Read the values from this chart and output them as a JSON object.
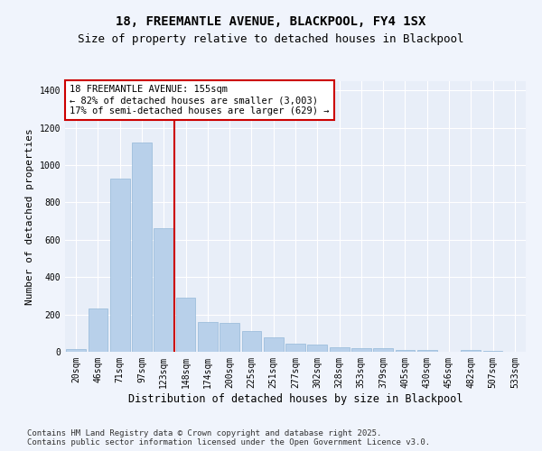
{
  "title1": "18, FREEMANTLE AVENUE, BLACKPOOL, FY4 1SX",
  "title2": "Size of property relative to detached houses in Blackpool",
  "xlabel": "Distribution of detached houses by size in Blackpool",
  "ylabel": "Number of detached properties",
  "categories": [
    "20sqm",
    "46sqm",
    "71sqm",
    "97sqm",
    "123sqm",
    "148sqm",
    "174sqm",
    "200sqm",
    "225sqm",
    "251sqm",
    "277sqm",
    "302sqm",
    "328sqm",
    "353sqm",
    "379sqm",
    "405sqm",
    "430sqm",
    "456sqm",
    "482sqm",
    "507sqm",
    "533sqm"
  ],
  "values": [
    15,
    230,
    930,
    1120,
    660,
    290,
    160,
    155,
    110,
    75,
    45,
    38,
    22,
    18,
    18,
    12,
    8,
    0,
    8,
    4,
    0
  ],
  "bar_color": "#b8d0ea",
  "bar_edge_color": "#94b8d8",
  "vline_color": "#cc0000",
  "vline_x": 4.5,
  "annotation_title": "18 FREEMANTLE AVENUE: 155sqm",
  "annotation_line1": "← 82% of detached houses are smaller (3,003)",
  "annotation_line2": "17% of semi-detached houses are larger (629) →",
  "annotation_box_color": "#cc0000",
  "ylim": [
    0,
    1450
  ],
  "yticks": [
    0,
    200,
    400,
    600,
    800,
    1000,
    1200,
    1400
  ],
  "bg_color": "#e8eef8",
  "grid_color": "#ffffff",
  "fig_bg_color": "#f0f4fc",
  "footer1": "Contains HM Land Registry data © Crown copyright and database right 2025.",
  "footer2": "Contains public sector information licensed under the Open Government Licence v3.0.",
  "title1_fontsize": 10,
  "title2_fontsize": 9,
  "xlabel_fontsize": 8.5,
  "ylabel_fontsize": 8,
  "tick_fontsize": 7,
  "annotation_fontsize": 7.5,
  "footer_fontsize": 6.5
}
